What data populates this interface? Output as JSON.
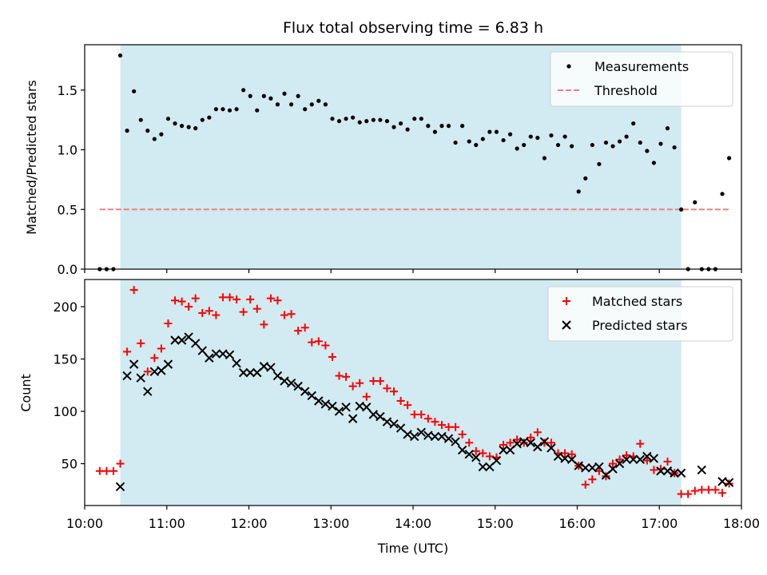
{
  "chart_data": [
    {
      "type": "scatter",
      "title": "Flux total observing time = 6.83 h",
      "xlabel": "",
      "ylabel": "Matched/Predicted stars",
      "xlim": [
        "10:00",
        "18:00"
      ],
      "ylim": [
        0,
        1.88
      ],
      "yticks": [
        "0.0",
        "0.5",
        "1.0",
        "1.5"
      ],
      "shaded_interval": [
        "10:26",
        "17:16"
      ],
      "shade_color": "#add8e6",
      "legend_position": "upper right",
      "series": [
        {
          "name": "Measurements",
          "marker": "dot",
          "color": "#000000",
          "x": [
            "10:11",
            "10:16",
            "10:21",
            "10:26",
            "10:31",
            "10:36",
            "10:41",
            "10:46",
            "10:51",
            "10:56",
            "11:01",
            "11:06",
            "11:11",
            "11:16",
            "11:21",
            "11:26",
            "11:31",
            "11:36",
            "11:41",
            "11:46",
            "11:51",
            "11:56",
            "12:01",
            "12:06",
            "12:11",
            "12:16",
            "12:21",
            "12:26",
            "12:31",
            "12:36",
            "12:41",
            "12:46",
            "12:51",
            "12:56",
            "13:01",
            "13:06",
            "13:11",
            "13:16",
            "13:21",
            "13:26",
            "13:31",
            "13:36",
            "13:41",
            "13:46",
            "13:51",
            "13:56",
            "14:01",
            "14:06",
            "14:11",
            "14:16",
            "14:21",
            "14:26",
            "14:31",
            "14:36",
            "14:41",
            "14:46",
            "14:51",
            "14:56",
            "15:01",
            "15:06",
            "15:11",
            "15:16",
            "15:21",
            "15:26",
            "15:31",
            "15:36",
            "15:41",
            "15:46",
            "15:51",
            "15:56",
            "16:01",
            "16:06",
            "16:11",
            "16:16",
            "16:21",
            "16:26",
            "16:31",
            "16:36",
            "16:41",
            "16:46",
            "16:51",
            "16:56",
            "17:01",
            "17:06",
            "17:11",
            "17:16",
            "17:21",
            "17:26",
            "17:31",
            "17:36",
            "17:41",
            "17:46",
            "17:51"
          ],
          "y": [
            0,
            0,
            0,
            1.79,
            1.16,
            1.49,
            1.25,
            1.16,
            1.09,
            1.13,
            1.26,
            1.22,
            1.2,
            1.19,
            1.18,
            1.25,
            1.27,
            1.34,
            1.34,
            1.33,
            1.34,
            1.5,
            1.45,
            1.33,
            1.45,
            1.43,
            1.38,
            1.47,
            1.38,
            1.45,
            1.34,
            1.38,
            1.41,
            1.38,
            1.26,
            1.24,
            1.26,
            1.27,
            1.23,
            1.24,
            1.25,
            1.25,
            1.24,
            1.19,
            1.22,
            1.17,
            1.26,
            1.26,
            1.2,
            1.15,
            1.2,
            1.2,
            1.06,
            1.2,
            1.07,
            1.04,
            1.09,
            1.15,
            1.15,
            1.08,
            1.13,
            1.01,
            1.04,
            1.11,
            1.1,
            0.93,
            1.12,
            1.04,
            1.11,
            1.03,
            0.65,
            0.76,
            1.04,
            0.88,
            1.06,
            1.03,
            1.07,
            1.11,
            1.22,
            1.06,
            0.99,
            0.89,
            1.05,
            1.18,
            1.02,
            0.5,
            0,
            0.56,
            0,
            0,
            0,
            0.63,
            0.93
          ]
        },
        {
          "name": "Threshold",
          "marker": "dashed-line",
          "color": "#f08080",
          "x": [
            "10:11",
            "17:51"
          ],
          "y": [
            0.5,
            0.5
          ]
        }
      ]
    },
    {
      "type": "scatter",
      "title": "",
      "xlabel": "Time (UTC)",
      "ylabel": "Count",
      "xlim": [
        "10:00",
        "18:00"
      ],
      "ylim": [
        10,
        226
      ],
      "xticks": [
        "10:00",
        "11:00",
        "12:00",
        "13:00",
        "14:00",
        "15:00",
        "16:00",
        "17:00",
        "18:00"
      ],
      "yticks": [
        "50",
        "100",
        "150",
        "200"
      ],
      "shaded_interval": [
        "10:26",
        "17:16"
      ],
      "shade_color": "#add8e6",
      "legend_position": "upper right",
      "series": [
        {
          "name": "Matched stars",
          "marker": "plus",
          "color": "#ff0000",
          "x": [
            "10:11",
            "10:16",
            "10:21",
            "10:26",
            "10:31",
            "10:36",
            "10:41",
            "10:46",
            "10:51",
            "10:56",
            "11:01",
            "11:06",
            "11:11",
            "11:16",
            "11:21",
            "11:26",
            "11:31",
            "11:36",
            "11:41",
            "11:46",
            "11:51",
            "11:56",
            "12:01",
            "12:06",
            "12:11",
            "12:16",
            "12:21",
            "12:26",
            "12:31",
            "12:36",
            "12:41",
            "12:46",
            "12:51",
            "12:56",
            "13:01",
            "13:06",
            "13:11",
            "13:16",
            "13:21",
            "13:26",
            "13:31",
            "13:36",
            "13:41",
            "13:46",
            "13:51",
            "13:56",
            "14:01",
            "14:06",
            "14:11",
            "14:16",
            "14:21",
            "14:26",
            "14:31",
            "14:36",
            "14:41",
            "14:46",
            "14:51",
            "14:56",
            "15:01",
            "15:06",
            "15:11",
            "15:16",
            "15:21",
            "15:26",
            "15:31",
            "15:36",
            "15:41",
            "15:46",
            "15:51",
            "15:56",
            "16:01",
            "16:06",
            "16:11",
            "16:16",
            "16:21",
            "16:26",
            "16:31",
            "16:36",
            "16:41",
            "16:46",
            "16:51",
            "16:56",
            "17:01",
            "17:06",
            "17:11",
            "17:16",
            "17:21",
            "17:26",
            "17:31",
            "17:36",
            "17:41",
            "17:46",
            "17:51"
          ],
          "y": [
            43,
            43,
            43,
            50,
            157,
            216,
            165,
            138,
            151,
            160,
            184,
            206,
            205,
            200,
            208,
            194,
            196,
            192,
            209,
            209,
            207,
            195,
            207,
            198,
            183,
            208,
            206,
            192,
            193,
            177,
            180,
            166,
            167,
            163,
            152,
            134,
            133,
            124,
            127,
            114,
            129,
            129,
            122,
            119,
            110,
            106,
            97,
            97,
            93,
            90,
            87,
            85,
            85,
            78,
            70,
            62,
            60,
            57,
            56,
            68,
            70,
            73,
            70,
            75,
            80,
            70,
            70,
            60,
            60,
            59,
            48,
            30,
            35,
            43,
            38,
            50,
            54,
            58,
            57,
            69,
            53,
            44,
            45,
            52,
            41,
            21,
            21,
            24,
            25,
            25,
            25,
            22,
            31
          ]
        },
        {
          "name": "Predicted stars",
          "marker": "x",
          "color": "#000000",
          "x": [
            "10:26",
            "10:31",
            "10:36",
            "10:41",
            "10:46",
            "10:51",
            "10:56",
            "11:01",
            "11:06",
            "11:11",
            "11:16",
            "11:21",
            "11:26",
            "11:31",
            "11:36",
            "11:41",
            "11:46",
            "11:51",
            "11:56",
            "12:01",
            "12:06",
            "12:11",
            "12:16",
            "12:21",
            "12:26",
            "12:31",
            "12:36",
            "12:41",
            "12:46",
            "12:51",
            "12:56",
            "13:01",
            "13:06",
            "13:11",
            "13:16",
            "13:21",
            "13:26",
            "13:31",
            "13:36",
            "13:41",
            "13:46",
            "13:51",
            "13:56",
            "14:01",
            "14:06",
            "14:11",
            "14:16",
            "14:21",
            "14:26",
            "14:31",
            "14:36",
            "14:41",
            "14:46",
            "14:51",
            "14:56",
            "15:01",
            "15:06",
            "15:11",
            "15:16",
            "15:21",
            "15:26",
            "15:31",
            "15:36",
            "15:41",
            "15:46",
            "15:51",
            "15:56",
            "16:01",
            "16:06",
            "16:11",
            "16:16",
            "16:21",
            "16:26",
            "16:31",
            "16:36",
            "16:41",
            "16:46",
            "16:51",
            "16:56",
            "17:01",
            "17:06",
            "17:11",
            "17:16",
            "17:31",
            "17:46",
            "17:51"
          ],
          "y": [
            28,
            134,
            145,
            132,
            119,
            138,
            139,
            145,
            168,
            168,
            171,
            165,
            158,
            151,
            155,
            155,
            154,
            146,
            137,
            137,
            137,
            143,
            142,
            134,
            129,
            127,
            124,
            119,
            115,
            110,
            107,
            105,
            100,
            104,
            93,
            105,
            104,
            97,
            95,
            90,
            88,
            84,
            78,
            76,
            80,
            77,
            76,
            76,
            74,
            71,
            63,
            59,
            56,
            47,
            47,
            53,
            63,
            63,
            69,
            71,
            70,
            66,
            71,
            65,
            57,
            55,
            54,
            48,
            46,
            46,
            47,
            39,
            45,
            50,
            54,
            54,
            54,
            57,
            55,
            43,
            43,
            41,
            41,
            44,
            33,
            32
          ]
        }
      ]
    }
  ]
}
